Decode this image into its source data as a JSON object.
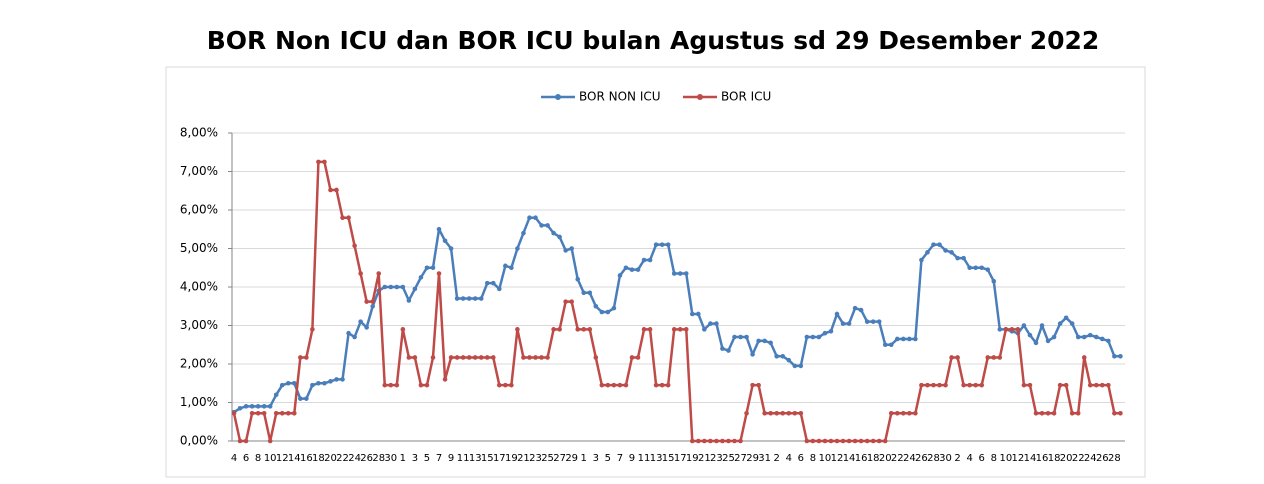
{
  "chart_data": {
    "type": "line",
    "title": "BOR Non ICU dan BOR ICU bulan Agustus sd 29 Desember 2022",
    "categories": [
      "4",
      null,
      "6",
      null,
      "8",
      null,
      "10",
      null,
      "12",
      null,
      "14",
      null,
      "16",
      null,
      "18",
      null,
      "20",
      null,
      "22",
      null,
      "24",
      null,
      "26",
      null,
      "28",
      null,
      "30",
      null,
      "1",
      null,
      "3",
      null,
      "5",
      null,
      "7",
      null,
      "9",
      null,
      "11",
      null,
      "13",
      null,
      "15",
      null,
      "17",
      null,
      "19",
      null,
      "21",
      null,
      "23",
      null,
      "25",
      null,
      "27",
      null,
      "29",
      null,
      "1",
      null,
      "3",
      null,
      "5",
      null,
      "7",
      null,
      "9",
      null,
      "11",
      null,
      "13",
      null,
      "15",
      null,
      "17",
      null,
      "19",
      null,
      "21",
      null,
      "23",
      null,
      "25",
      null,
      "27",
      null,
      "29",
      null,
      "31",
      null,
      "2",
      null,
      "4",
      null,
      "6",
      null,
      "8",
      null,
      "10",
      null,
      "12",
      null,
      "14",
      null,
      "16",
      null,
      "18",
      null,
      "20",
      null,
      "22",
      null,
      "24",
      null,
      "26",
      null,
      "28",
      null,
      "30",
      null,
      "2",
      null,
      "4",
      null,
      "6",
      null,
      "8",
      null,
      "10",
      null,
      "12",
      null,
      "14",
      null,
      "16",
      null,
      "18",
      null,
      "20",
      null,
      "22",
      null,
      "24",
      null,
      "26",
      null,
      "28",
      null
    ],
    "series": [
      {
        "name": "BOR NON ICU",
        "color": "#4a7ebb",
        "values": [
          0.75,
          0.85,
          0.9,
          0.9,
          0.9,
          0.9,
          0.9,
          1.2,
          1.45,
          1.5,
          1.5,
          1.1,
          1.1,
          1.45,
          1.5,
          1.5,
          1.55,
          1.6,
          1.6,
          2.8,
          2.7,
          3.1,
          2.95,
          3.5,
          3.9,
          4.0,
          4.0,
          4.0,
          4.0,
          3.65,
          3.95,
          4.25,
          4.5,
          4.5,
          5.5,
          5.2,
          5.0,
          3.7,
          3.7,
          3.7,
          3.7,
          3.7,
          4.1,
          4.1,
          3.95,
          4.55,
          4.5,
          5.0,
          5.4,
          5.8,
          5.8,
          5.6,
          5.6,
          5.4,
          5.3,
          4.95,
          5.0,
          4.2,
          3.85,
          3.85,
          3.5,
          3.35,
          3.35,
          3.45,
          4.3,
          4.5,
          4.45,
          4.45,
          4.7,
          4.7,
          5.1,
          5.1,
          5.1,
          4.35,
          4.35,
          4.35,
          3.3,
          3.3,
          2.9,
          3.05,
          3.05,
          2.4,
          2.35,
          2.7,
          2.7,
          2.7,
          2.25,
          2.6,
          2.6,
          2.55,
          2.2,
          2.2,
          2.1,
          1.95,
          1.95,
          2.7,
          2.7,
          2.7,
          2.8,
          2.85,
          3.3,
          3.05,
          3.05,
          3.45,
          3.4,
          3.1,
          3.1,
          3.1,
          2.5,
          2.5,
          2.65,
          2.65,
          2.65,
          2.65,
          4.7,
          4.9,
          5.1,
          5.1,
          4.95,
          4.9,
          4.75,
          4.75,
          4.5,
          4.5,
          4.5,
          4.45,
          4.15,
          2.9,
          2.9,
          2.85,
          2.8,
          3.0,
          2.75,
          2.55,
          3.0,
          2.6,
          2.7,
          3.05,
          3.2,
          3.05,
          2.7,
          2.7,
          2.75,
          2.7,
          2.65,
          2.6,
          2.2,
          2.2
        ]
      },
      {
        "name": "BOR ICU",
        "color": "#be4b48",
        "values": [
          0.72,
          0,
          0,
          0.72,
          0.72,
          0.72,
          0,
          0.72,
          0.72,
          0.72,
          0.72,
          2.17,
          2.17,
          2.9,
          7.25,
          7.25,
          6.52,
          6.52,
          5.8,
          5.8,
          5.07,
          4.35,
          3.62,
          3.62,
          4.35,
          1.45,
          1.45,
          1.45,
          2.9,
          2.17,
          2.17,
          1.45,
          1.45,
          2.17,
          4.35,
          1.6,
          2.17,
          2.17,
          2.17,
          2.17,
          2.17,
          2.17,
          2.17,
          2.17,
          1.45,
          1.45,
          1.45,
          2.9,
          2.17,
          2.17,
          2.17,
          2.17,
          2.17,
          2.9,
          2.9,
          3.62,
          3.62,
          2.9,
          2.9,
          2.9,
          2.17,
          1.45,
          1.45,
          1.45,
          1.45,
          1.45,
          2.17,
          2.17,
          2.9,
          2.9,
          1.45,
          1.45,
          1.45,
          2.9,
          2.9,
          2.9,
          0,
          0,
          0,
          0,
          0,
          0,
          0,
          0,
          0,
          0.72,
          1.45,
          1.45,
          0.72,
          0.72,
          0.72,
          0.72,
          0.72,
          0.72,
          0.72,
          0,
          0,
          0,
          0,
          0,
          0,
          0,
          0,
          0,
          0,
          0,
          0,
          0,
          0,
          0.72,
          0.72,
          0.72,
          0.72,
          0.72,
          1.45,
          1.45,
          1.45,
          1.45,
          1.45,
          2.17,
          2.17,
          1.45,
          1.45,
          1.45,
          1.45,
          2.17,
          2.17,
          2.17,
          2.9,
          2.9,
          2.9,
          1.45,
          1.45,
          0.72,
          0.72,
          0.72,
          0.72,
          1.45,
          1.45,
          0.72,
          0.72,
          2.17,
          1.45,
          1.45,
          1.45,
          1.45,
          0.72,
          0.72
        ]
      }
    ],
    "ylim": [
      0,
      8
    ],
    "yticks": [
      {
        "value": 0,
        "label": "0,00%"
      },
      {
        "value": 1,
        "label": "1,00%"
      },
      {
        "value": 2,
        "label": "2,00%"
      },
      {
        "value": 3,
        "label": "3,00%"
      },
      {
        "value": 4,
        "label": "4,00%"
      },
      {
        "value": 5,
        "label": "5,00%"
      },
      {
        "value": 6,
        "label": "6,00%"
      },
      {
        "value": 7,
        "label": "7,00%"
      },
      {
        "value": 8,
        "label": "8,00%"
      }
    ],
    "grid": true,
    "legend": "top"
  }
}
